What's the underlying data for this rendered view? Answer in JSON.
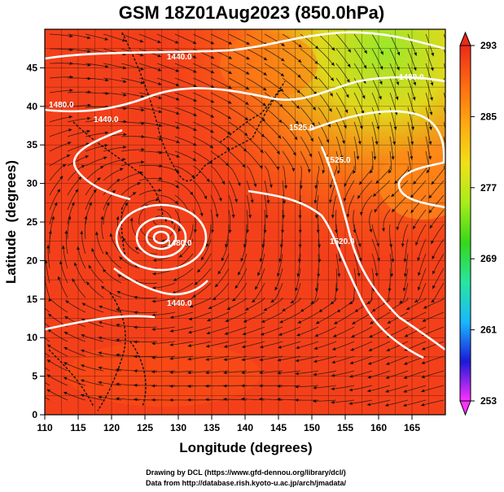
{
  "chart_data": {
    "type": "heatmap",
    "title": "GSM 18Z01Aug2023 (850.0hPa)",
    "xlabel": "Longitude (degrees)",
    "ylabel": "Latitude  (degrees)",
    "xlim": [
      110,
      170
    ],
    "ylim": [
      0,
      50
    ],
    "x_ticks": [
      "110",
      "115",
      "120",
      "125",
      "130",
      "135",
      "140",
      "145",
      "150",
      "155",
      "160",
      "165"
    ],
    "y_ticks": [
      "0",
      "5",
      "10",
      "15",
      "20",
      "25",
      "30",
      "35",
      "40",
      "45"
    ],
    "grid": true,
    "colorbar": {
      "labels": [
        "293",
        "285",
        "277",
        "269",
        "261",
        "253"
      ],
      "min": 253,
      "max": 293,
      "stops": [
        "#ff30ff",
        "#1a1ad8",
        "#19b8ff",
        "#26e6a0",
        "#34d81a",
        "#a8ec1a",
        "#f0e018",
        "#ffaa10",
        "#ff6a10",
        "#ee2a1a"
      ]
    },
    "contour_labels": [
      "1440.0",
      "1440.0",
      "1480.0",
      "1525.0",
      "1525.0",
      "1520.0",
      "1480.0",
      "1440.0",
      "1480.0"
    ],
    "cyclone_center": {
      "lon": 127,
      "lat": 25
    }
  },
  "credits": {
    "line1": "Drawing by DCL (https://www.gfd-dennou.org/library/dcl/)",
    "line2": "Data from http://database.rish.kyoto-u.ac.jp/arch/jmadata/"
  }
}
